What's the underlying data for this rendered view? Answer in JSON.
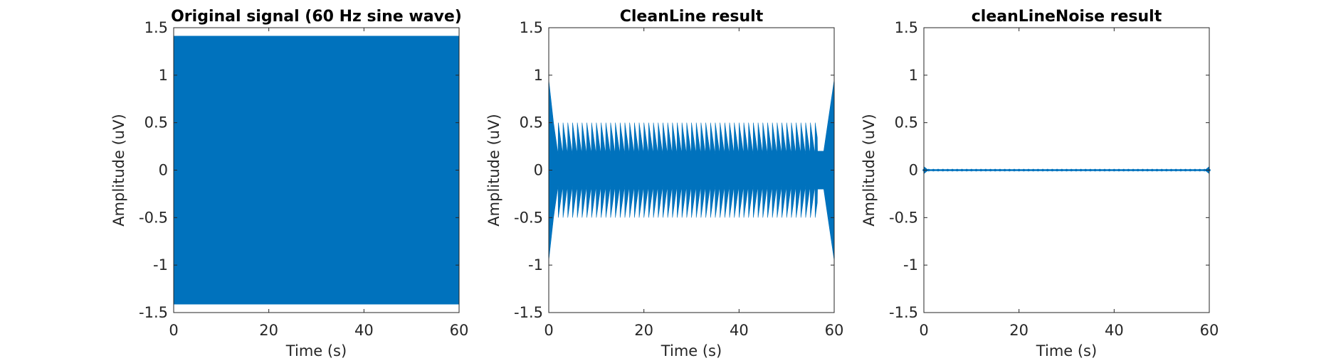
{
  "chart_data": [
    {
      "type": "line",
      "title": "Original signal (60 Hz sine wave)",
      "xlabel": "Time (s)",
      "ylabel": "Amplitude (uV)",
      "xlim": [
        0,
        60
      ],
      "ylim": [
        -1.5,
        1.5
      ],
      "xticks": [
        "0",
        "20",
        "40",
        "60"
      ],
      "yticks": [
        "1.5",
        "1",
        "0.5",
        "0",
        "-0.5",
        "-1",
        "-1.5"
      ],
      "grid": false,
      "color": "#0072BD",
      "series": [
        {
          "kind": "dense_sine_envelope",
          "frequency_hz": 60,
          "x": [
            0,
            60
          ],
          "upper": [
            1.414,
            1.414
          ],
          "lower": [
            -1.414,
            -1.414
          ]
        }
      ]
    },
    {
      "type": "line",
      "title": "CleanLine result",
      "xlabel": "Time (s)",
      "ylabel": "Amplitude (uV)",
      "xlim": [
        0,
        60
      ],
      "ylim": [
        -1.5,
        1.5
      ],
      "xticks": [
        "0",
        "20",
        "40",
        "60"
      ],
      "yticks": [
        "1.5",
        "1",
        "0.5",
        "0",
        "-0.5",
        "-1",
        "-1.5"
      ],
      "grid": false,
      "color": "#0072BD",
      "series": [
        {
          "kind": "residual_envelope",
          "edge_peak": 0.95,
          "edge_decay_s": 1.2,
          "plateau_max": 0.5,
          "plateau_min": 0.15,
          "sawtooth_period_s": 1.0,
          "plateau_range": [
            1.0,
            56.5
          ],
          "tail_range": [
            56.5,
            57.8
          ],
          "tail_amplitude": 0.2
        }
      ]
    },
    {
      "type": "line",
      "title": "cleanLineNoise result",
      "xlabel": "Time (s)",
      "ylabel": "Amplitude (uV)",
      "xlim": [
        0,
        60
      ],
      "ylim": [
        -1.5,
        1.5
      ],
      "xticks": [
        "0",
        "20",
        "40",
        "60"
      ],
      "yticks": [
        "1.5",
        "1",
        "0.5",
        "0",
        "-0.5",
        "-1",
        "-1.5"
      ],
      "grid": false,
      "color": "#0072BD",
      "series": [
        {
          "kind": "near_zero",
          "baseline_amplitude": 0.01,
          "edge_peak": 0.04,
          "edge_width_s": 1.0,
          "dot_spacing_s": 1.0
        }
      ]
    }
  ]
}
